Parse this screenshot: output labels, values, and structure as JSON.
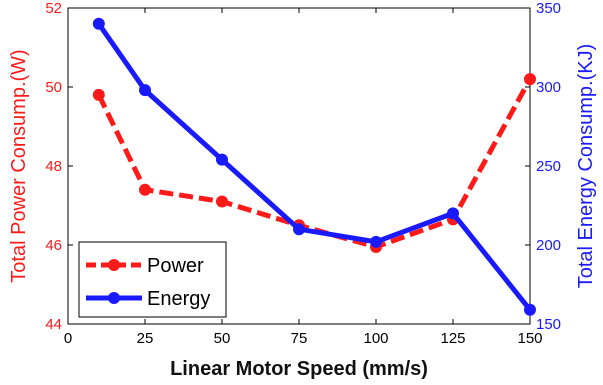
{
  "chart_data": {
    "type": "line",
    "xlabel": "Linear Motor Speed (mm/s)",
    "ylabel": "Total Power Consump.(W)",
    "ylabel_right": "Total Energy Consump.(KJ)",
    "xlim": [
      0,
      150
    ],
    "ylim": [
      44,
      52
    ],
    "ylim_right": [
      150,
      350
    ],
    "x_ticks": [
      0,
      25,
      50,
      75,
      100,
      125,
      150
    ],
    "y_ticks": [
      44,
      46,
      48,
      50,
      52
    ],
    "y_ticks_right": [
      150,
      200,
      250,
      300,
      350
    ],
    "grid": false,
    "legend_position": "bottom-left",
    "x": [
      10,
      25,
      50,
      75,
      100,
      125,
      150
    ],
    "series": [
      {
        "name": "Power",
        "axis": "left",
        "style": "dashed",
        "color": "#ff1a1a",
        "values": [
          49.8,
          47.4,
          47.1,
          46.5,
          45.95,
          46.65,
          50.2
        ]
      },
      {
        "name": "Energy",
        "axis": "right",
        "style": "solid",
        "color": "#1a1aff",
        "values": [
          340,
          298,
          254,
          210,
          202,
          220,
          159
        ]
      }
    ]
  }
}
